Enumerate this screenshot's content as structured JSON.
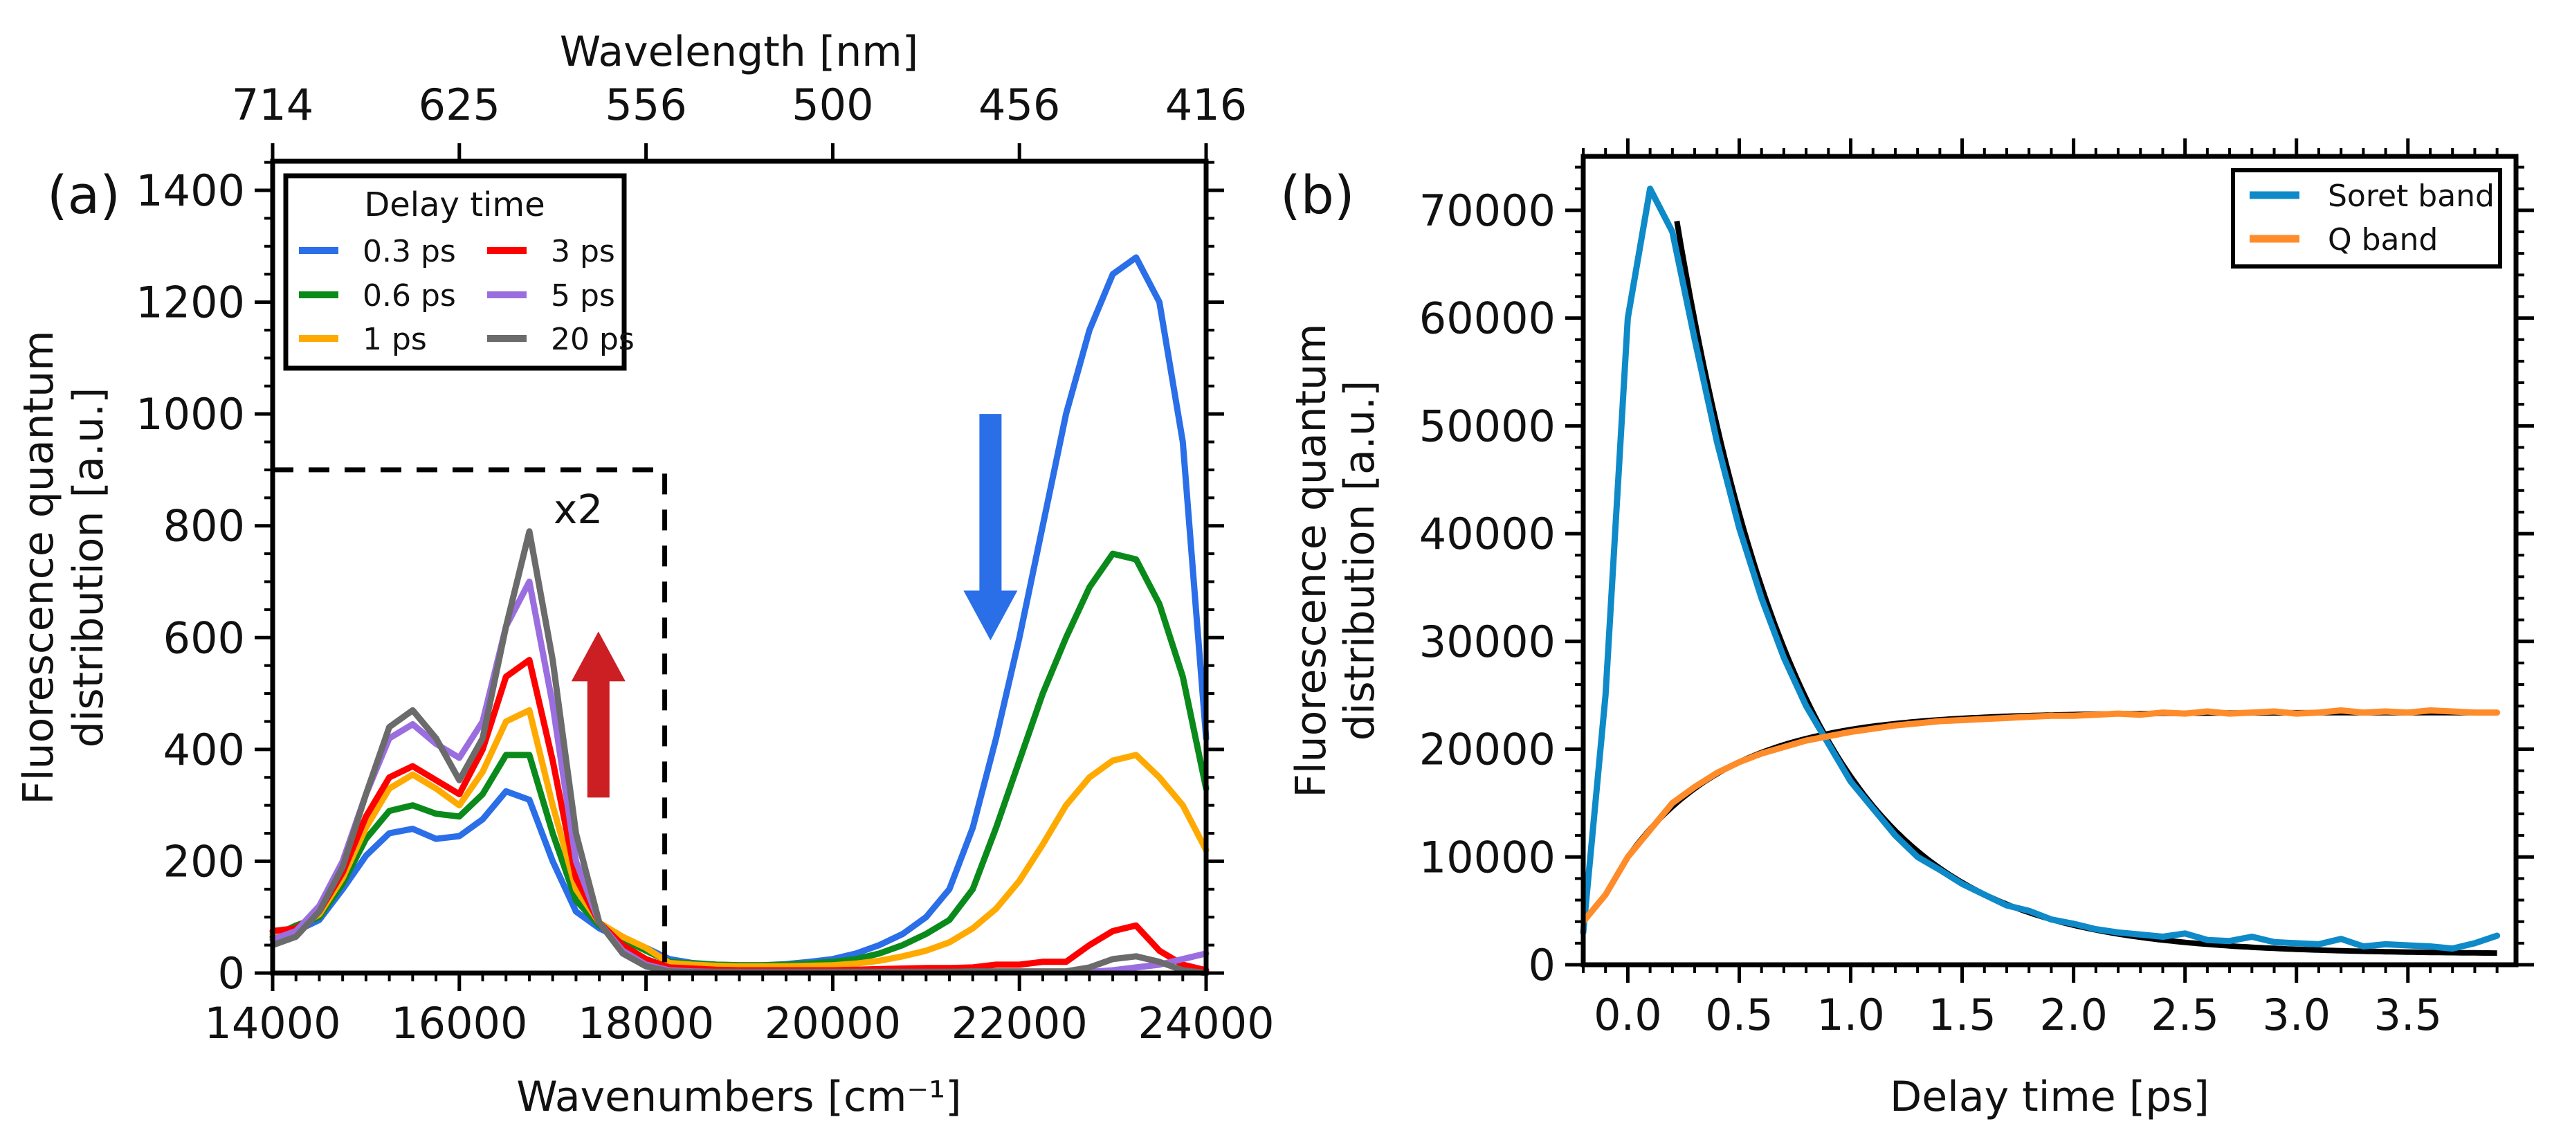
{
  "chart_data": [
    {
      "panel_label": "(a)",
      "type": "line",
      "xlabel": "Wavenumbers [cm⁻¹]",
      "ylabel_line1": "Fluorescence quantum",
      "ylabel_line2": "distribution [a.u.]",
      "top_xlabel": "Wavelength [nm]",
      "xlim": [
        14000,
        24000
      ],
      "ylim": [
        0,
        1452
      ],
      "xticks": [
        14000,
        16000,
        18000,
        20000,
        22000,
        24000
      ],
      "xtick_labels": [
        "14000",
        "16000",
        "18000",
        "20000",
        "22000",
        "24000"
      ],
      "yticks": [
        0,
        200,
        400,
        600,
        800,
        1000,
        1200,
        1400
      ],
      "ytick_labels": [
        "0",
        "200",
        "400",
        "600",
        "800",
        "1000",
        "1200",
        "1400"
      ],
      "top_ticks": [
        14000,
        16000,
        18000,
        20000,
        22000,
        24000
      ],
      "top_tick_labels": [
        "714",
        "625",
        "556",
        "500",
        "456",
        "416"
      ],
      "legend": {
        "title": "Delay time",
        "placement": "top-left",
        "columns": 2
      },
      "grid": false,
      "x_start": 14000,
      "x_step": 250,
      "series": [
        {
          "name": "0.3 ps",
          "color": "#2a6ee8",
          "values": [
            70,
            75,
            95,
            150,
            210,
            250,
            258,
            240,
            245,
            275,
            325,
            310,
            200,
            110,
            80,
            60,
            45,
            25,
            18,
            15,
            14,
            14,
            16,
            20,
            25,
            35,
            50,
            70,
            100,
            150,
            260,
            420,
            600,
            800,
            1000,
            1150,
            1250,
            1280,
            1200,
            950,
            420
          ]
        },
        {
          "name": "0.6 ps",
          "color": "#0a8a1a",
          "values": [
            65,
            85,
            100,
            160,
            240,
            290,
            300,
            285,
            280,
            320,
            390,
            390,
            250,
            130,
            85,
            60,
            40,
            20,
            17,
            15,
            14,
            14,
            15,
            17,
            20,
            25,
            35,
            50,
            70,
            95,
            150,
            260,
            380,
            500,
            600,
            690,
            750,
            740,
            660,
            530,
            330
          ]
        },
        {
          "name": "1 ps",
          "color": "#ffaa00",
          "values": [
            70,
            80,
            105,
            170,
            260,
            330,
            355,
            330,
            300,
            360,
            450,
            470,
            300,
            150,
            90,
            65,
            45,
            18,
            15,
            13,
            12,
            12,
            12,
            13,
            14,
            17,
            22,
            30,
            40,
            55,
            80,
            115,
            165,
            230,
            300,
            350,
            380,
            390,
            350,
            300,
            220
          ]
        },
        {
          "name": "3 ps",
          "color": "#ff0000",
          "values": [
            75,
            80,
            110,
            180,
            280,
            350,
            370,
            345,
            320,
            400,
            530,
            560,
            380,
            170,
            90,
            50,
            25,
            10,
            8,
            6,
            5,
            5,
            5,
            5,
            5,
            6,
            7,
            8,
            9,
            9,
            10,
            15,
            15,
            20,
            20,
            50,
            75,
            85,
            40,
            15,
            5
          ]
        },
        {
          "name": "5 ps",
          "color": "#9b6ee0",
          "values": [
            60,
            75,
            120,
            200,
            320,
            420,
            445,
            410,
            385,
            450,
            620,
            700,
            480,
            200,
            90,
            40,
            15,
            5,
            3,
            2,
            2,
            2,
            2,
            2,
            2,
            2,
            2,
            2,
            2,
            2,
            2,
            2,
            2,
            2,
            2,
            2,
            5,
            10,
            15,
            25,
            35
          ]
        },
        {
          "name": "20 ps",
          "color": "#6b6b6b",
          "values": [
            50,
            65,
            110,
            190,
            320,
            440,
            470,
            420,
            345,
            420,
            620,
            790,
            560,
            250,
            90,
            35,
            12,
            3,
            2,
            2,
            2,
            2,
            2,
            2,
            2,
            2,
            2,
            2,
            2,
            2,
            3,
            3,
            3,
            3,
            3,
            10,
            25,
            30,
            20,
            5,
            0
          ]
        }
      ],
      "annotations": {
        "scaled_region": {
          "x_end": 18200,
          "y_top": 900,
          "label": "x2"
        },
        "red_arrow": {
          "direction": "up",
          "x": 17490,
          "y_from": 314,
          "y_to": 611,
          "color": "#cc1f24"
        },
        "blue_arrow": {
          "direction": "down",
          "x": 21690,
          "y_from": 1000,
          "y_to": 595,
          "color": "#2a6ee8"
        }
      }
    },
    {
      "panel_label": "(b)",
      "type": "line",
      "xlabel": "Delay time [ps]",
      "ylabel_line1": "Fluorescence quantum",
      "ylabel_line2": "distribution [a.u.]",
      "xlim": [
        -0.2,
        3.985
      ],
      "ylim": [
        0,
        75000
      ],
      "xticks": [
        0.0,
        0.5,
        1.0,
        1.5,
        2.0,
        2.5,
        3.0,
        3.5
      ],
      "xtick_labels": [
        "0.0",
        "0.5",
        "1.0",
        "1.5",
        "2.0",
        "2.5",
        "3.0",
        "3.5"
      ],
      "yticks": [
        0,
        10000,
        20000,
        30000,
        40000,
        50000,
        60000,
        70000
      ],
      "ytick_labels": [
        "0",
        "10000",
        "20000",
        "30000",
        "40000",
        "50000",
        "60000",
        "70000"
      ],
      "legend": {
        "placement": "top-right"
      },
      "grid": false,
      "x_start": -0.2,
      "x_step": 0.1,
      "series": [
        {
          "name": "Soret band",
          "color": "#0e8ac8",
          "values": [
            3000,
            25000,
            60000,
            72000,
            68000,
            58000,
            48500,
            40500,
            34000,
            28500,
            24000,
            20500,
            17000,
            14500,
            12000,
            10000,
            8800,
            7500,
            6500,
            5500,
            5000,
            4200,
            3800,
            3300,
            3000,
            2800,
            2600,
            2900,
            2300,
            2200,
            2600,
            2100,
            2000,
            1900,
            2400,
            1700,
            1900,
            1800,
            1700,
            1500,
            2000,
            2700
          ]
        },
        {
          "name": "Q band",
          "color": "#ff8c2a",
          "values": [
            4000,
            6500,
            10000,
            12500,
            15000,
            16500,
            17800,
            18800,
            19600,
            20200,
            20800,
            21200,
            21600,
            21900,
            22200,
            22400,
            22600,
            22700,
            22800,
            22900,
            23000,
            23100,
            23100,
            23200,
            23300,
            23200,
            23400,
            23300,
            23500,
            23300,
            23400,
            23500,
            23300,
            23400,
            23600,
            23400,
            23500,
            23400,
            23600,
            23500,
            23400,
            23400
          ]
        }
      ],
      "fits": [
        {
          "of": "Soret band",
          "model": "exp_decay",
          "amplitude": 68000,
          "tau": 0.55,
          "t0": 0.22,
          "offset": 1000,
          "range": [
            0.22,
            3.9
          ],
          "color": "#000000"
        },
        {
          "of": "Q band",
          "model": "exp_rise",
          "plateau": 23400,
          "amplitude": 13400,
          "tau": 0.467,
          "t0": 0.0,
          "range": [
            0.0,
            3.9
          ],
          "color": "#000000"
        }
      ]
    }
  ]
}
